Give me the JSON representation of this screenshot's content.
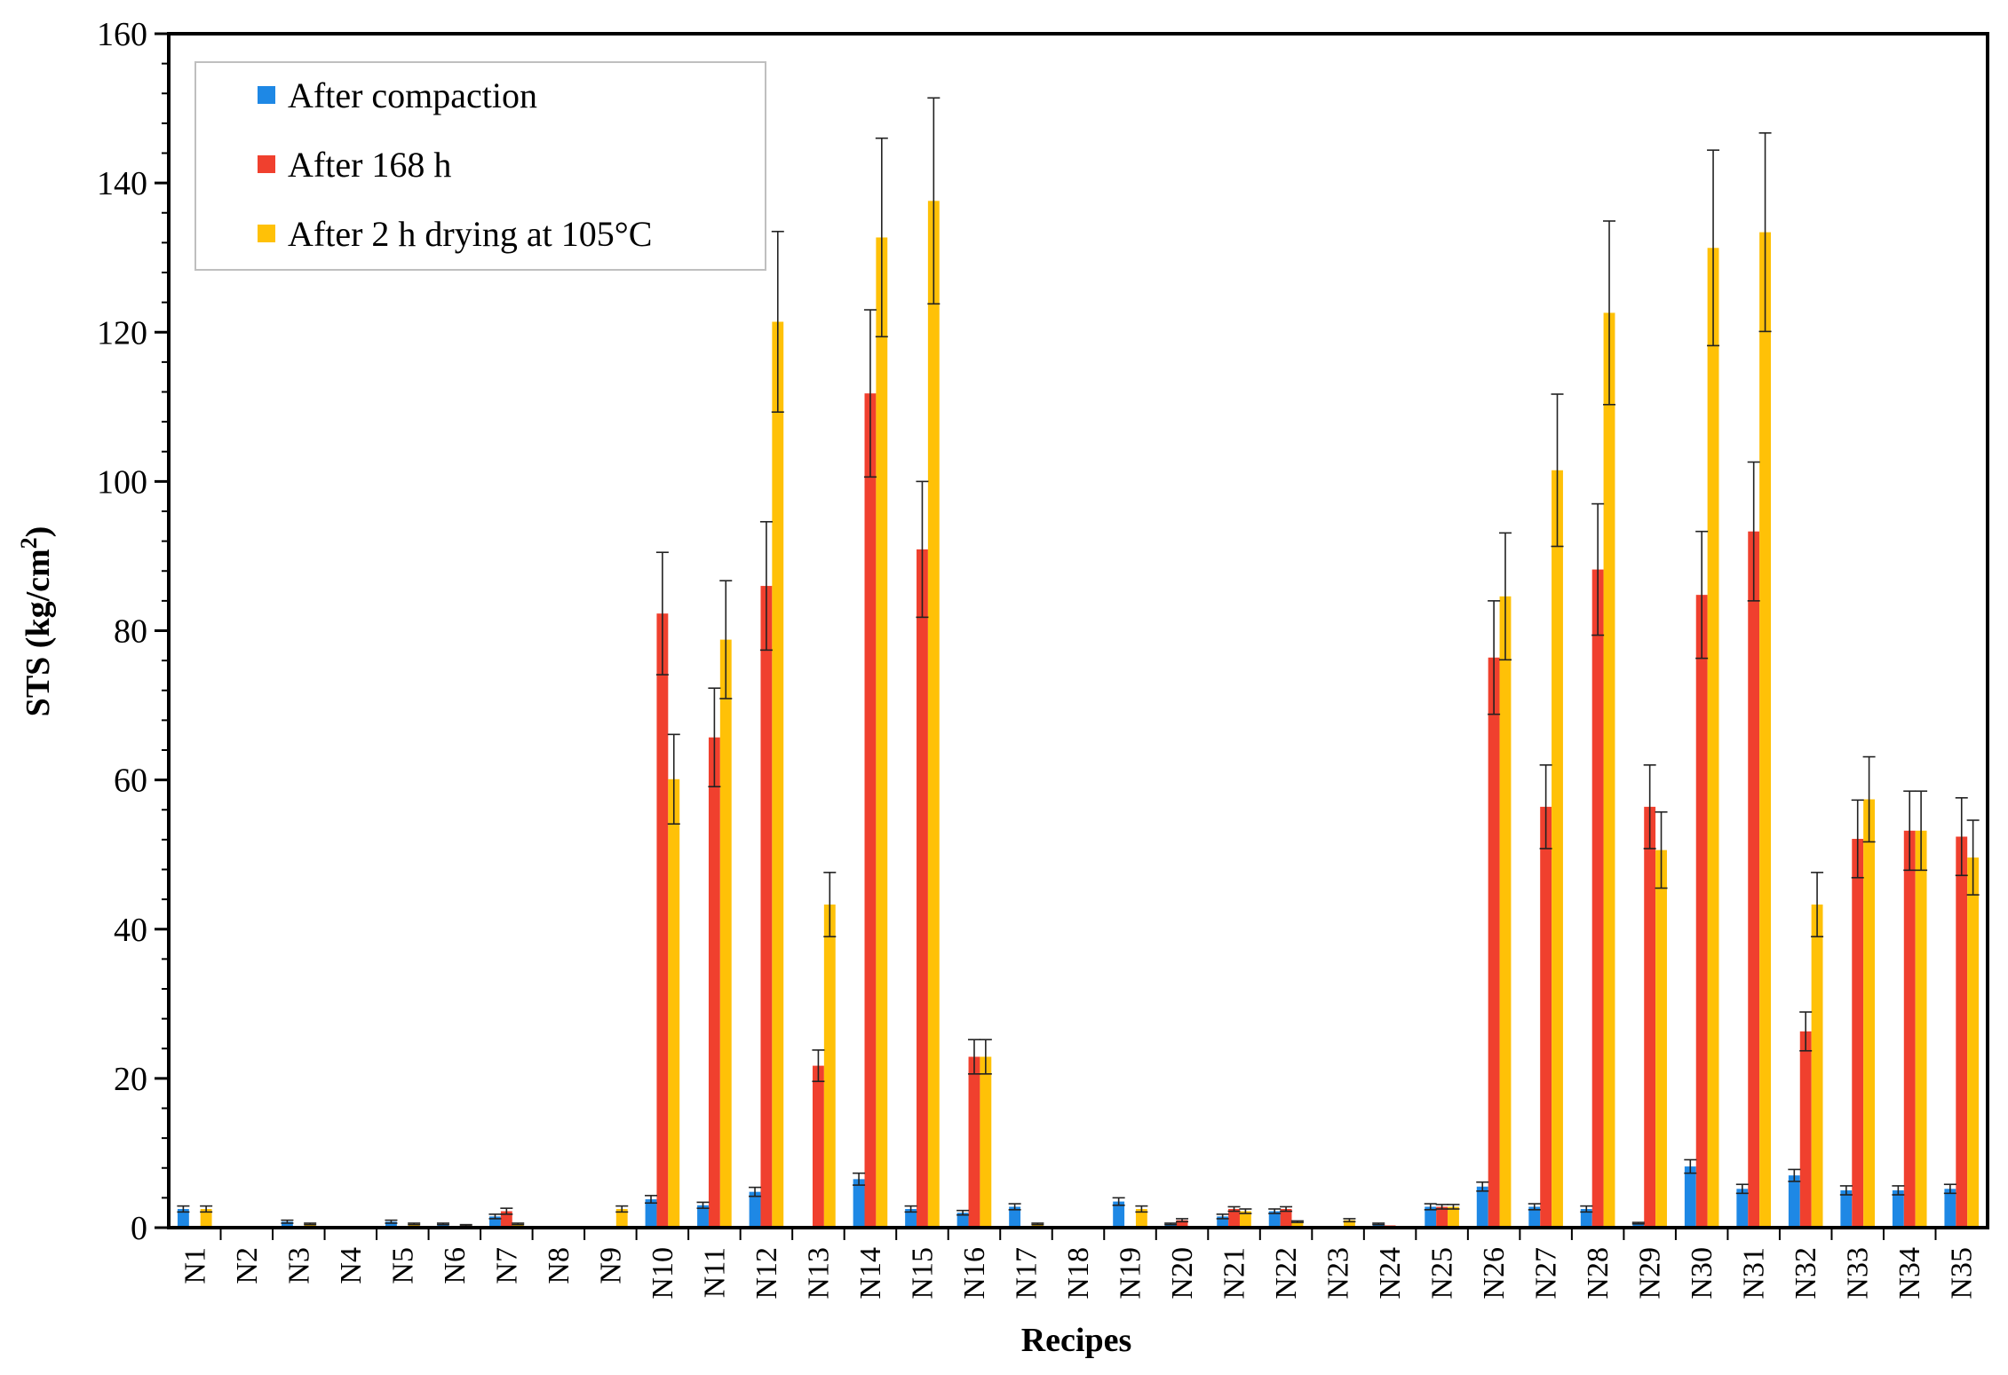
{
  "chart_data": {
    "type": "bar",
    "title": "",
    "xlabel": "Recipes",
    "ylabel_main": "STS (kg/cm",
    "ylabel_sup": "2",
    "ylabel_close": ")",
    "ylim": [
      0,
      160
    ],
    "ytick_step": 20,
    "ytick_labels": [
      "0",
      "20",
      "40",
      "60",
      "80",
      "100",
      "120",
      "140",
      "160"
    ],
    "legend_position": "top-left",
    "categories": [
      "N1",
      "N2",
      "N3",
      "N4",
      "N5",
      "N6",
      "N7",
      "N8",
      "N9",
      "N10",
      "N11",
      "N12",
      "N13",
      "N14",
      "N15",
      "N16",
      "N17",
      "N18",
      "N19",
      "N20",
      "N21",
      "N22",
      "N23",
      "N24",
      "N25",
      "N26",
      "N27",
      "N28",
      "N29",
      "N30",
      "N31",
      "N32",
      "N33",
      "N34",
      "N35"
    ],
    "series": [
      {
        "name": "After compaction",
        "color": "#1E88E5",
        "values": [
          2.5,
          0.2,
          0.8,
          0.2,
          0.8,
          0.5,
          1.5,
          0.2,
          0.2,
          3.8,
          3.0,
          4.8,
          0.2,
          6.5,
          2.5,
          2.0,
          2.8,
          0.2,
          3.5,
          0.5,
          1.5,
          2.2,
          0.2,
          0.5,
          2.8,
          5.5,
          2.8,
          2.5,
          0.6,
          8.2,
          5.2,
          7.0,
          5.0,
          5.0,
          5.2
        ],
        "errors": [
          0.4,
          0,
          0.2,
          0,
          0.2,
          0.1,
          0.3,
          0,
          0,
          0.5,
          0.4,
          0.6,
          0,
          0.8,
          0.4,
          0.3,
          0.4,
          0,
          0.5,
          0.1,
          0.3,
          0.3,
          0,
          0.1,
          0.4,
          0.6,
          0.4,
          0.4,
          0.1,
          0.9,
          0.6,
          0.8,
          0.6,
          0.6,
          0.6
        ]
      },
      {
        "name": "After 168 h",
        "color": "#F0402E",
        "values": [
          0.2,
          0.2,
          0.2,
          0.2,
          0.2,
          0.2,
          2.2,
          0.2,
          0.2,
          82.3,
          65.7,
          86.0,
          21.7,
          111.8,
          90.9,
          22.9,
          0.2,
          0.2,
          0.2,
          1.0,
          2.5,
          2.5,
          0.2,
          0.3,
          2.8,
          76.4,
          56.4,
          88.2,
          56.4,
          84.8,
          93.3,
          26.3,
          52.1,
          53.2,
          52.4
        ],
        "errors": [
          0,
          0,
          0,
          0,
          0,
          0,
          0.4,
          0,
          0,
          8.2,
          6.6,
          8.6,
          2.1,
          11.2,
          9.1,
          2.3,
          0,
          0,
          0,
          0.2,
          0.3,
          0.3,
          0,
          0,
          0.3,
          7.6,
          5.6,
          8.8,
          5.6,
          8.5,
          9.3,
          2.6,
          5.2,
          5.3,
          5.2
        ]
      },
      {
        "name": "After 2 h drying at 105°C",
        "color": "#FFC107",
        "values": [
          2.5,
          0.2,
          0.5,
          0.2,
          0.5,
          0.3,
          0.5,
          0.2,
          2.5,
          60.1,
          78.8,
          121.4,
          43.3,
          132.7,
          137.6,
          22.9,
          0.5,
          0.2,
          2.5,
          0.2,
          2.2,
          0.8,
          1.0,
          0.2,
          2.8,
          84.6,
          101.5,
          122.6,
          50.6,
          131.3,
          133.4,
          43.3,
          57.4,
          53.2,
          49.6
        ],
        "errors": [
          0.4,
          0,
          0.1,
          0,
          0.1,
          0.1,
          0.1,
          0,
          0.4,
          6.0,
          7.9,
          12.1,
          4.3,
          13.3,
          13.8,
          2.3,
          0.1,
          0,
          0.4,
          0,
          0.3,
          0.1,
          0.2,
          0,
          0.3,
          8.5,
          10.2,
          12.3,
          5.1,
          13.1,
          13.3,
          4.3,
          5.7,
          5.3,
          5.0
        ]
      }
    ]
  }
}
